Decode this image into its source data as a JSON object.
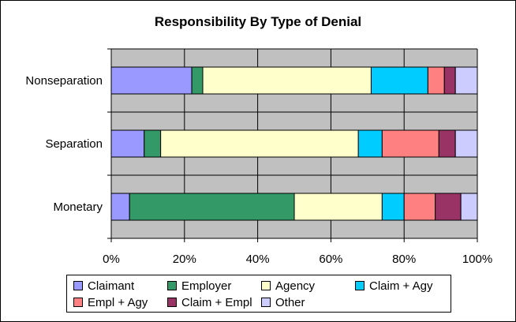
{
  "chart_data": {
    "type": "bar",
    "orientation": "horizontal",
    "stacked": "percent",
    "title": "Responsibility By Type of Denial",
    "categories": [
      "Monetary",
      "Separation",
      "Nonseparation"
    ],
    "x_ticks": [
      "0%",
      "20%",
      "40%",
      "60%",
      "80%",
      "100%"
    ],
    "xlim": [
      0,
      100
    ],
    "grid": true,
    "legend_position": "bottom",
    "series": [
      {
        "name": "Claimant",
        "color": "#9999ff",
        "values": [
          5,
          9,
          22
        ]
      },
      {
        "name": "Employer",
        "color": "#339966",
        "values": [
          45,
          4.5,
          3
        ]
      },
      {
        "name": "Agency",
        "color": "#ffffcc",
        "values": [
          24,
          54,
          46
        ]
      },
      {
        "name": "Claim + Agy",
        "color": "#00ccff",
        "values": [
          6,
          6.5,
          15.5
        ]
      },
      {
        "name": "Empl + Agy",
        "color": "#ff8080",
        "values": [
          8.5,
          15.5,
          4.5
        ]
      },
      {
        "name": "Claim + Empl",
        "color": "#993366",
        "values": [
          7,
          4.5,
          3
        ]
      },
      {
        "name": "Other",
        "color": "#ccccff",
        "values": [
          4.5,
          6,
          6
        ]
      }
    ]
  }
}
